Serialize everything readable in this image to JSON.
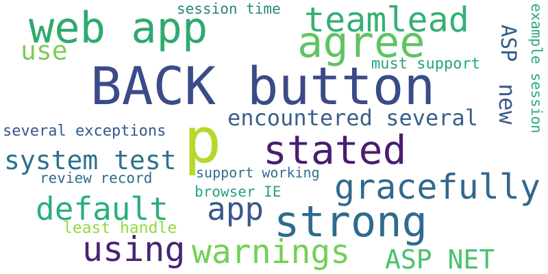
{
  "words": [
    {
      "text": "BACK button",
      "color": "#3b4b88"
    },
    {
      "text": "web app",
      "color": "#2faa6e"
    },
    {
      "text": "agree",
      "color": "#5fc462"
    },
    {
      "text": "teamlead",
      "color": "#35b073"
    },
    {
      "text": "session time",
      "color": "#25857e"
    },
    {
      "text": "use",
      "color": "#7dcc55"
    },
    {
      "text": "ASP",
      "color": "#2f5f8a"
    },
    {
      "text": "must support",
      "color": "#24a480"
    },
    {
      "text": "example session",
      "color": "#2aa87e"
    },
    {
      "text": "p",
      "color": "#b5d92a"
    },
    {
      "text": "encountered several",
      "color": "#3a5f8c"
    },
    {
      "text": "new",
      "color": "#3a5c8d"
    },
    {
      "text": "several exceptions",
      "color": "#33588c"
    },
    {
      "text": "stated",
      "color": "#4a1d6f"
    },
    {
      "text": "system test",
      "color": "#2c718e"
    },
    {
      "text": "support working",
      "color": "#2e6f8e"
    },
    {
      "text": "review record",
      "color": "#2d6b8e"
    },
    {
      "text": "gracefully",
      "color": "#31688e"
    },
    {
      "text": "browser IE",
      "color": "#25a183"
    },
    {
      "text": "default",
      "color": "#29af7f"
    },
    {
      "text": "app",
      "color": "#38588c"
    },
    {
      "text": "strong",
      "color": "#2e6b8e"
    },
    {
      "text": "least handle",
      "color": "#95d840"
    },
    {
      "text": "using",
      "color": "#482475"
    },
    {
      "text": "warnings",
      "color": "#73d056"
    },
    {
      "text": "ASP NET",
      "color": "#4ac16d"
    }
  ]
}
